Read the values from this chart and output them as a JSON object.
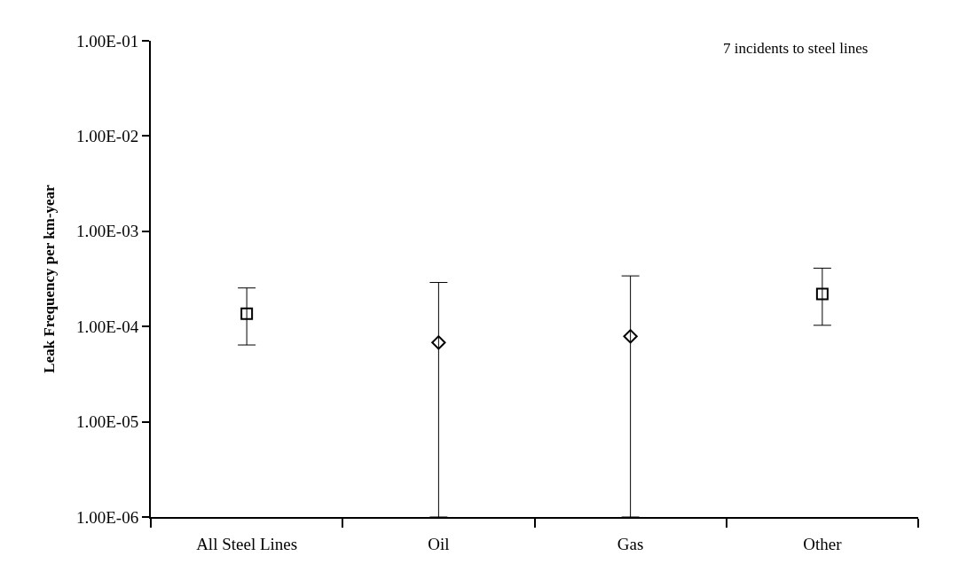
{
  "chart_data": {
    "type": "scatter",
    "ylabel": "Leak Frequency per km-year",
    "categories": [
      "All Steel Lines",
      "Oil",
      "Gas",
      "Other"
    ],
    "series": [
      {
        "color": "#000000",
        "marker": "square",
        "values": [
          0.000136,
          null,
          null,
          0.00022
        ],
        "errors": [
          [
            6.4e-05,
            0.000254
          ],
          null,
          null,
          [
            0.000103,
            0.00041
          ]
        ]
      },
      {
        "color": "#000000",
        "marker": "diamond",
        "values": [
          null,
          6.8e-05,
          7.9e-05,
          null
        ],
        "errors": [
          null,
          [
            1e-06,
            0.00029
          ],
          [
            1e-06,
            0.00034
          ],
          null
        ]
      }
    ],
    "log": "y",
    "ylim": [
      1e-06,
      0.1
    ],
    "yticks": [
      {
        "value": 1e-06,
        "label": "1.00E-06"
      },
      {
        "value": 1e-05,
        "label": "1.00E-05"
      },
      {
        "value": 0.0001,
        "label": "1.00E-04"
      },
      {
        "value": 0.001,
        "label": "1.00E-03"
      },
      {
        "value": 0.01,
        "label": "1.00E-02"
      },
      {
        "value": 0.1,
        "label": "1.00E-01"
      }
    ],
    "legend": false,
    "annotations": [
      "7 incidents to steel lines"
    ]
  }
}
